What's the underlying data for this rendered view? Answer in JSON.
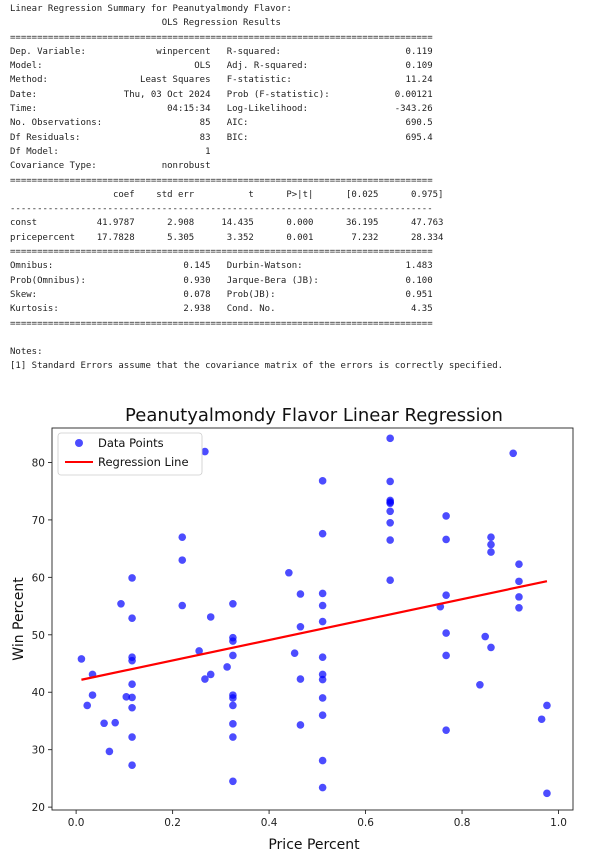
{
  "summary_lines": [
    "Linear Regression Summary for Peanutyalmondy Flavor:",
    "                            OLS Regression Results",
    "==============================================================================",
    "Dep. Variable:             winpercent   R-squared:                       0.119",
    "Model:                            OLS   Adj. R-squared:                  0.109",
    "Method:                 Least Squares   F-statistic:                     11.24",
    "Date:                Thu, 03 Oct 2024   Prob (F-statistic):            0.00121",
    "Time:                        04:15:34   Log-Likelihood:                -343.26",
    "No. Observations:                  85   AIC:                             690.5",
    "Df Residuals:                      83   BIC:                             695.4",
    "Df Model:                           1",
    "Covariance Type:            nonrobust",
    "==============================================================================",
    "                   coef    std err          t      P>|t|      [0.025      0.975]",
    "------------------------------------------------------------------------------",
    "const           41.9787      2.908     14.435      0.000      36.195      47.763",
    "pricepercent    17.7828      5.305      3.352      0.001       7.232      28.334",
    "==============================================================================",
    "Omnibus:                        0.145   Durbin-Watson:                   1.483",
    "Prob(Omnibus):                  0.930   Jarque-Bera (JB):                0.100",
    "Skew:                           0.078   Prob(JB):                        0.951",
    "Kurtosis:                       2.938   Cond. No.                         4.35",
    "==============================================================================",
    "",
    "Notes:",
    "[1] Standard Errors assume that the covariance matrix of the errors is correctly specified."
  ],
  "chart_data": {
    "type": "scatter",
    "title": "Peanutyalmondy Flavor Linear Regression",
    "xlabel": "Price Percent",
    "ylabel": "Win Percent",
    "xlim": [
      -0.05,
      1.03
    ],
    "ylim": [
      19.5,
      86
    ],
    "xticks": [
      0.0,
      0.2,
      0.4,
      0.6,
      0.8,
      1.0
    ],
    "xtick_labels": [
      "0.0",
      "0.2",
      "0.4",
      "0.6",
      "0.8",
      "1.0"
    ],
    "yticks": [
      20,
      30,
      40,
      50,
      60,
      70,
      80
    ],
    "ytick_labels": [
      "20",
      "30",
      "40",
      "50",
      "60",
      "70",
      "80"
    ],
    "grid": false,
    "legend_position": "top-left",
    "series": [
      {
        "name": "Data Points",
        "kind": "scatter",
        "color": "#0000ff",
        "points": [
          [
            0.011,
            45.8
          ],
          [
            0.023,
            37.7
          ],
          [
            0.034,
            43.1
          ],
          [
            0.034,
            39.5
          ],
          [
            0.058,
            34.6
          ],
          [
            0.069,
            29.7
          ],
          [
            0.081,
            34.7
          ],
          [
            0.093,
            55.4
          ],
          [
            0.104,
            39.2
          ],
          [
            0.116,
            46.1
          ],
          [
            0.116,
            45.5
          ],
          [
            0.116,
            59.9
          ],
          [
            0.116,
            52.9
          ],
          [
            0.116,
            41.4
          ],
          [
            0.116,
            39.1
          ],
          [
            0.116,
            37.3
          ],
          [
            0.116,
            32.2
          ],
          [
            0.116,
            27.3
          ],
          [
            0.22,
            67.0
          ],
          [
            0.22,
            63.0
          ],
          [
            0.22,
            55.1
          ],
          [
            0.255,
            47.2
          ],
          [
            0.267,
            81.9
          ],
          [
            0.267,
            42.3
          ],
          [
            0.279,
            53.1
          ],
          [
            0.279,
            43.1
          ],
          [
            0.313,
            44.4
          ],
          [
            0.325,
            55.4
          ],
          [
            0.325,
            49.5
          ],
          [
            0.325,
            48.9
          ],
          [
            0.325,
            46.4
          ],
          [
            0.325,
            39.5
          ],
          [
            0.325,
            39.0
          ],
          [
            0.325,
            37.7
          ],
          [
            0.325,
            34.5
          ],
          [
            0.325,
            32.2
          ],
          [
            0.325,
            24.5
          ],
          [
            0.441,
            60.8
          ],
          [
            0.453,
            46.8
          ],
          [
            0.465,
            57.1
          ],
          [
            0.465,
            51.4
          ],
          [
            0.465,
            42.3
          ],
          [
            0.465,
            34.3
          ],
          [
            0.511,
            76.8
          ],
          [
            0.511,
            67.6
          ],
          [
            0.511,
            57.2
          ],
          [
            0.511,
            55.1
          ],
          [
            0.511,
            52.3
          ],
          [
            0.511,
            46.1
          ],
          [
            0.511,
            43.1
          ],
          [
            0.511,
            42.2
          ],
          [
            0.511,
            39.0
          ],
          [
            0.511,
            36.0
          ],
          [
            0.511,
            28.1
          ],
          [
            0.511,
            23.4
          ],
          [
            0.651,
            84.2
          ],
          [
            0.651,
            76.7
          ],
          [
            0.651,
            73.4
          ],
          [
            0.651,
            73.1
          ],
          [
            0.651,
            72.9
          ],
          [
            0.651,
            71.5
          ],
          [
            0.651,
            69.5
          ],
          [
            0.651,
            66.5
          ],
          [
            0.651,
            59.5
          ],
          [
            0.755,
            54.9
          ],
          [
            0.767,
            70.7
          ],
          [
            0.767,
            66.6
          ],
          [
            0.767,
            56.9
          ],
          [
            0.767,
            50.3
          ],
          [
            0.767,
            46.4
          ],
          [
            0.767,
            33.4
          ],
          [
            0.837,
            41.3
          ],
          [
            0.848,
            49.7
          ],
          [
            0.86,
            67.0
          ],
          [
            0.86,
            65.7
          ],
          [
            0.86,
            64.4
          ],
          [
            0.86,
            47.8
          ],
          [
            0.906,
            81.6
          ],
          [
            0.918,
            62.3
          ],
          [
            0.918,
            59.3
          ],
          [
            0.918,
            56.6
          ],
          [
            0.918,
            54.7
          ],
          [
            0.965,
            35.3
          ],
          [
            0.976,
            37.7
          ],
          [
            0.976,
            22.4
          ]
        ]
      },
      {
        "name": "Regression Line",
        "kind": "line",
        "color": "#ff0000",
        "intercept": 41.9787,
        "slope": 17.7828,
        "x_range": [
          0.011,
          0.976
        ]
      }
    ]
  }
}
